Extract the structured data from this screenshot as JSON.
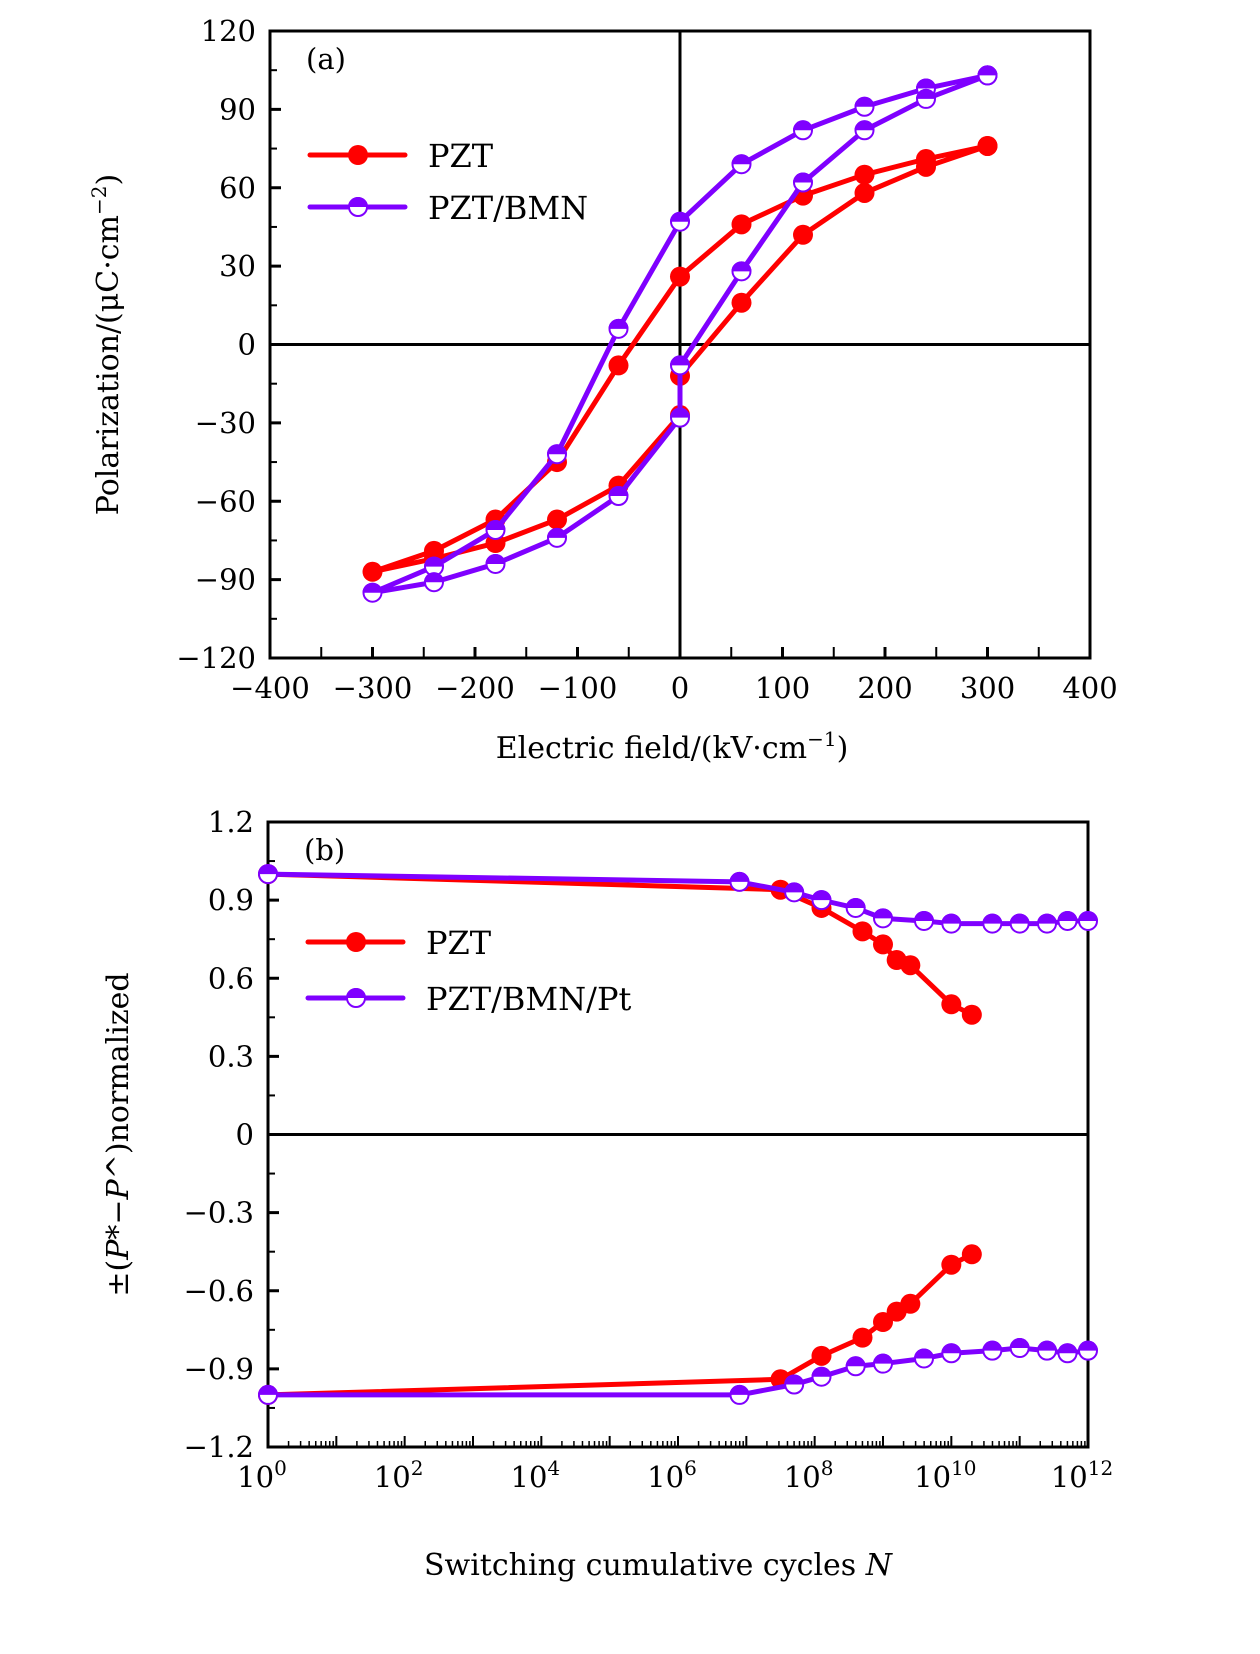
{
  "colors": {
    "pzt": "#ff0000",
    "pzt_bmn": "#7f00ff",
    "axis": "#000000",
    "background": "#ffffff"
  },
  "chart_data": [
    {
      "id": "a",
      "type": "line",
      "panel_label": "(a)",
      "title": "",
      "xlabel": "Electric field/(kV·cm⁻¹)",
      "ylabel": "Polarization/(μC·cm⁻²)",
      "xlim": [
        -400,
        400
      ],
      "ylim": [
        -120,
        120
      ],
      "xticks": [
        -400,
        -300,
        -200,
        -100,
        0,
        100,
        200,
        300,
        400
      ],
      "xtick_labels": [
        "−400",
        "−300",
        "−200",
        "−100",
        "0",
        "100",
        "200",
        "300",
        "400"
      ],
      "yticks": [
        120,
        90,
        60,
        30,
        0,
        -30,
        -60,
        -90,
        -120
      ],
      "ytick_labels": [
        "120",
        "90",
        "60",
        "30",
        "0",
        "−30",
        "−60",
        "−90",
        "−120"
      ],
      "zero_lines": true,
      "grid": false,
      "legend": {
        "position": "top-left",
        "entries": [
          "PZT",
          "PZT/BMN"
        ]
      },
      "series": [
        {
          "name": "PZT",
          "marker": "filled-circle",
          "color_key": "pzt",
          "x": [
            300,
            240,
            180,
            120,
            60,
            0,
            -60,
            -120,
            -180,
            -240,
            -300,
            -240,
            -180,
            -120,
            -60,
            0,
            0,
            60,
            120,
            180,
            240,
            300
          ],
          "y": [
            76,
            71,
            65,
            57,
            46,
            26,
            -8,
            -45,
            -67,
            -79,
            -87,
            -82,
            -76,
            -67,
            -54,
            -27,
            -12,
            16,
            42,
            58,
            68,
            76
          ]
        },
        {
          "name": "PZT/BMN",
          "marker": "half-filled-circle",
          "color_key": "pzt_bmn",
          "x": [
            300,
            240,
            180,
            120,
            60,
            0,
            -60,
            -120,
            -180,
            -240,
            -300,
            -240,
            -180,
            -120,
            -60,
            0,
            0,
            60,
            120,
            180,
            240,
            300
          ],
          "y": [
            103,
            98,
            91,
            82,
            69,
            47,
            6,
            -42,
            -71,
            -85,
            -95,
            -91,
            -84,
            -74,
            -58,
            -28,
            -8,
            28,
            62,
            82,
            94,
            103
          ]
        }
      ]
    },
    {
      "id": "b",
      "type": "line",
      "panel_label": "(b)",
      "title": "",
      "xlabel": "Switching cumulative cycles N",
      "ylabel": "±(P*−P^)normalized",
      "xscale": "log",
      "xlim_log10": [
        0,
        12
      ],
      "ylim": [
        -1.2,
        1.2
      ],
      "xticks_log10": [
        0,
        2,
        4,
        6,
        8,
        10,
        12
      ],
      "xtick_labels": [
        "10^0",
        "10^2",
        "10^4",
        "10^6",
        "10^8",
        "10^10",
        "10^12"
      ],
      "yticks": [
        1.2,
        0.9,
        0.6,
        0.3,
        0,
        -0.3,
        -0.6,
        -0.9,
        -1.2
      ],
      "ytick_labels": [
        "1.2",
        "0.9",
        "0.6",
        "0.3",
        "0",
        "−0.3",
        "−0.6",
        "−0.9",
        "−1.2"
      ],
      "zero_lines": true,
      "grid": false,
      "legend": {
        "position": "top-left",
        "entries": [
          "PZT",
          "PZT/BMN/Pt"
        ]
      },
      "series": [
        {
          "name": "PZT (+)",
          "legend": "PZT",
          "marker": "filled-circle",
          "color_key": "pzt",
          "log10_x": [
            0,
            7.5,
            8.1,
            8.7,
            9.0,
            9.2,
            9.4,
            10.0,
            10.3
          ],
          "y": [
            1.0,
            0.94,
            0.87,
            0.78,
            0.73,
            0.67,
            0.65,
            0.5,
            0.46
          ]
        },
        {
          "name": "PZT (−)",
          "legend": "PZT",
          "marker": "filled-circle",
          "color_key": "pzt",
          "log10_x": [
            0,
            7.5,
            8.1,
            8.7,
            9.0,
            9.2,
            9.4,
            10.0,
            10.3
          ],
          "y": [
            -1.0,
            -0.94,
            -0.85,
            -0.78,
            -0.72,
            -0.68,
            -0.65,
            -0.5,
            -0.46
          ]
        },
        {
          "name": "PZT/BMN/Pt (+)",
          "legend": "PZT/BMN/Pt",
          "marker": "half-filled-circle",
          "color_key": "pzt_bmn",
          "log10_x": [
            0,
            6.9,
            7.7,
            8.1,
            8.6,
            9.0,
            9.6,
            10.0,
            10.6,
            11.0,
            11.4,
            11.7,
            12.0
          ],
          "y": [
            1.0,
            0.97,
            0.93,
            0.9,
            0.87,
            0.83,
            0.82,
            0.81,
            0.81,
            0.81,
            0.81,
            0.82,
            0.82
          ]
        },
        {
          "name": "PZT/BMN/Pt (−)",
          "legend": "PZT/BMN/Pt",
          "marker": "half-filled-circle",
          "color_key": "pzt_bmn",
          "log10_x": [
            0,
            6.9,
            7.7,
            8.1,
            8.6,
            9.0,
            9.6,
            10.0,
            10.6,
            11.0,
            11.4,
            11.7,
            12.0
          ],
          "y": [
            -1.0,
            -1.0,
            -0.96,
            -0.93,
            -0.89,
            -0.88,
            -0.86,
            -0.84,
            -0.83,
            -0.82,
            -0.83,
            -0.84,
            -0.83
          ]
        }
      ]
    }
  ]
}
